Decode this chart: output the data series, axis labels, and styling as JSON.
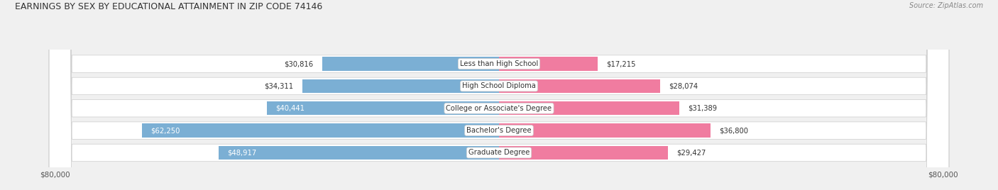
{
  "title": "EARNINGS BY SEX BY EDUCATIONAL ATTAINMENT IN ZIP CODE 74146",
  "source": "Source: ZipAtlas.com",
  "categories": [
    "Less than High School",
    "High School Diploma",
    "College or Associate's Degree",
    "Bachelor's Degree",
    "Graduate Degree"
  ],
  "male_values": [
    30816,
    34311,
    40441,
    62250,
    48917
  ],
  "female_values": [
    17215,
    28074,
    31389,
    36800,
    29427
  ],
  "male_color": "#7bafd4",
  "female_color": "#f07ca0",
  "max_value": 80000,
  "bar_height": 0.62,
  "background_color": "#f0f0f0",
  "axis_label_left": "$80,000",
  "axis_label_right": "$80,000"
}
